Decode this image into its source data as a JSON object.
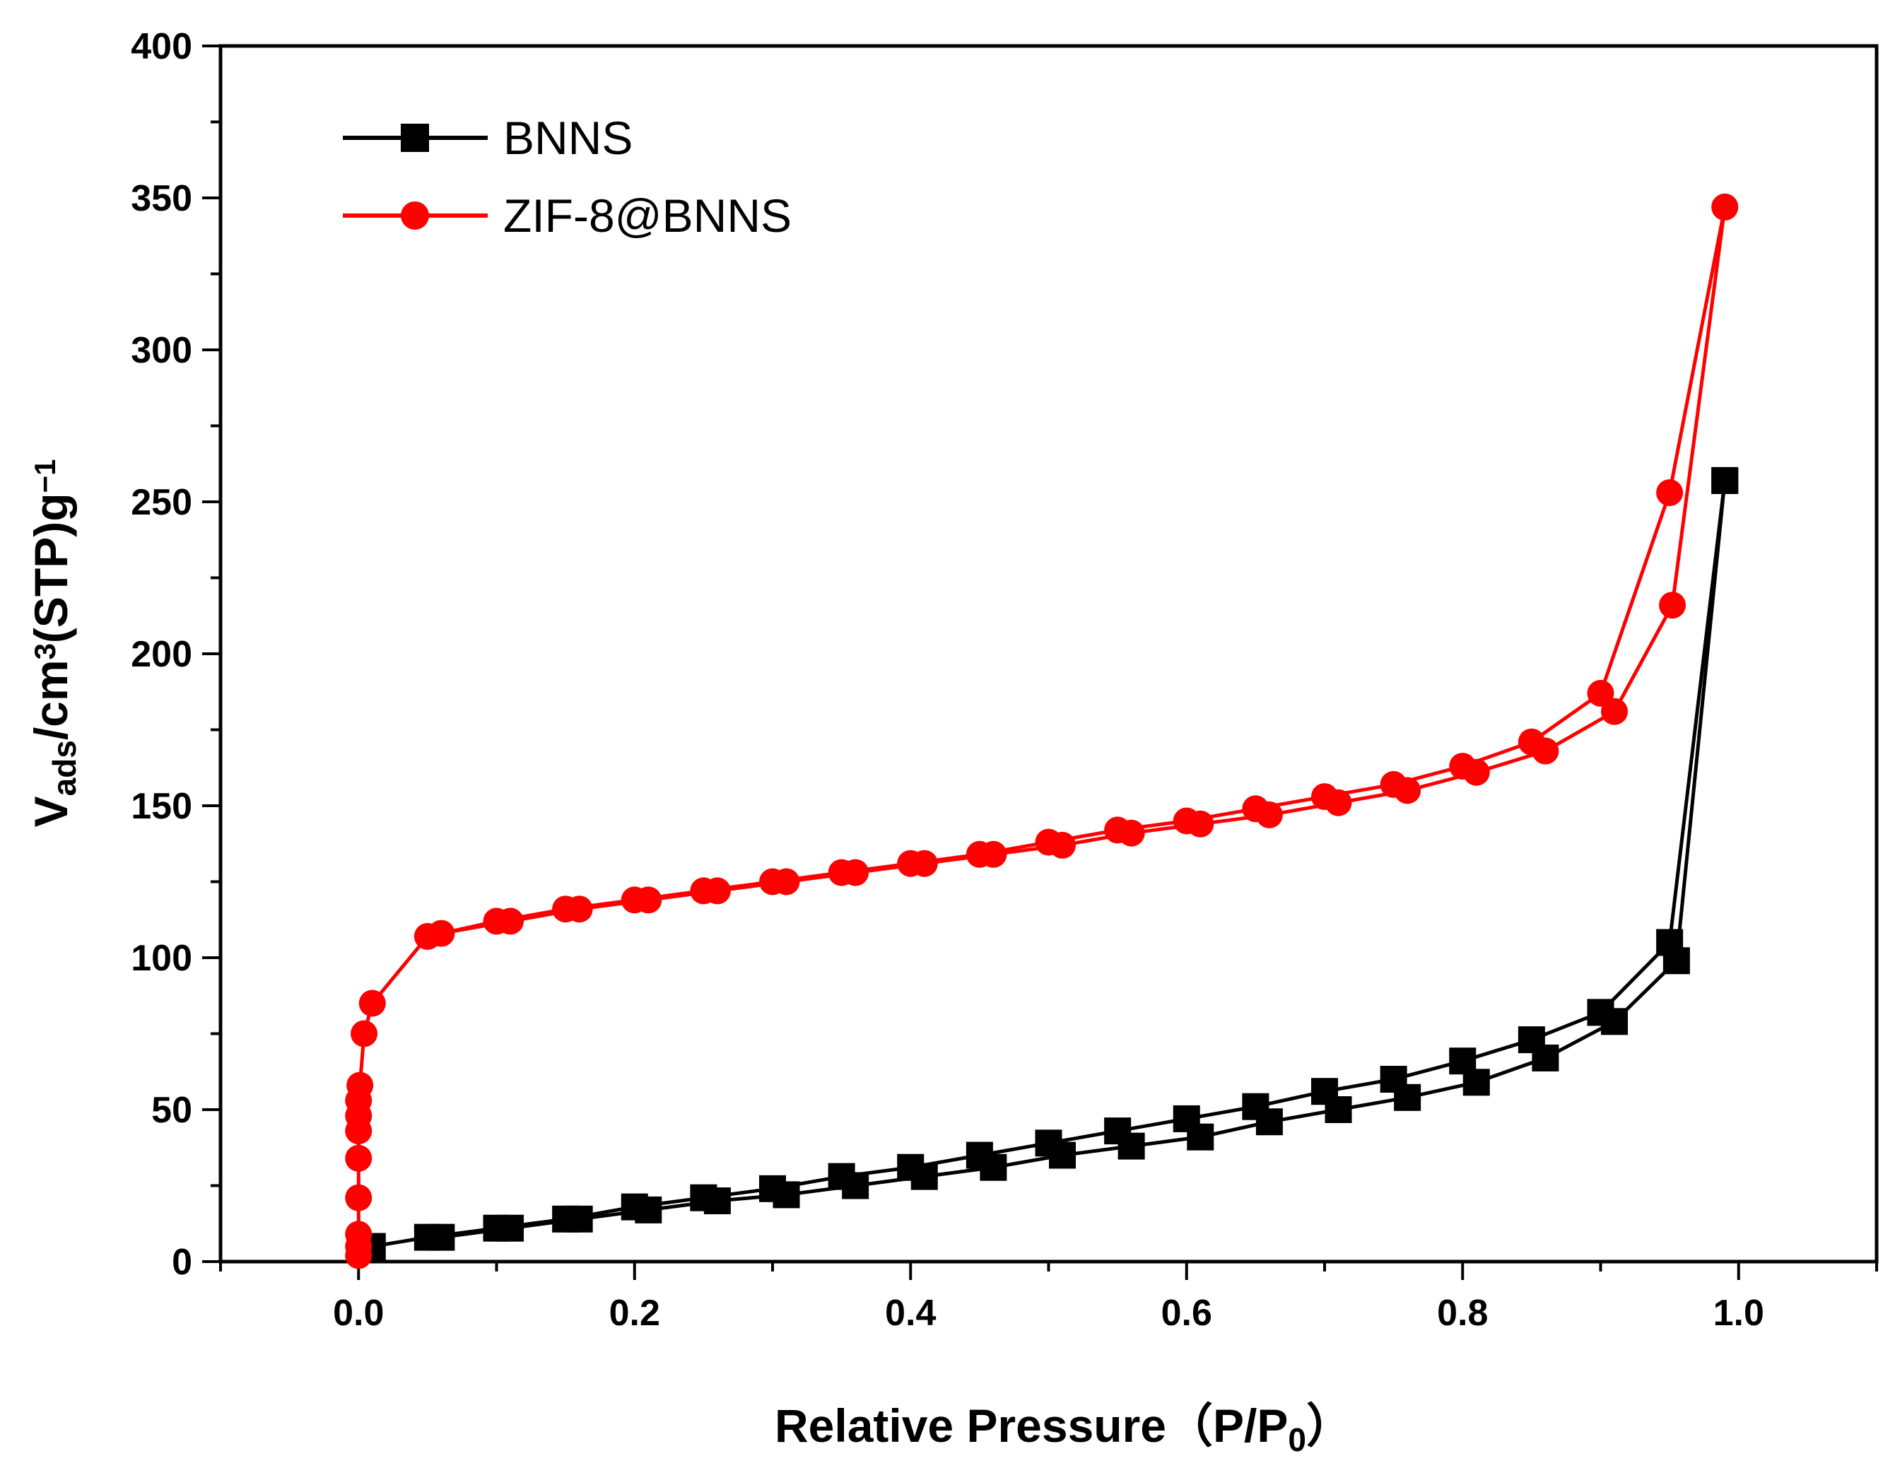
{
  "chart_data": {
    "type": "line",
    "title": "",
    "xlabel": "Relative Pressure（P/P0）",
    "xlabel_parts": {
      "main": "Relative Pressure（P/P",
      "sub": "0",
      "close": "）"
    },
    "ylabel": "Vads/cm3(STP)g−1",
    "ylabel_parts": {
      "v": "V",
      "ads": "ads",
      "cm": "/cm",
      "sup3": "3",
      "stp": "(STP)g",
      "supneg1": "−1"
    },
    "xlim": [
      -0.1,
      1.1
    ],
    "ylim": [
      0,
      400
    ],
    "x_ticks": [
      "0.0",
      "0.2",
      "0.4",
      "0.6",
      "0.8",
      "1.0"
    ],
    "x_tick_values": [
      0,
      0.2,
      0.4,
      0.6,
      0.8,
      1.0
    ],
    "y_ticks": [
      "0",
      "50",
      "100",
      "150",
      "200",
      "250",
      "300",
      "350",
      "400"
    ],
    "y_tick_values": [
      0,
      50,
      100,
      150,
      200,
      250,
      300,
      350,
      400
    ],
    "legend_position": "top-left",
    "series": [
      {
        "name": "BNNS",
        "color": "#000000",
        "marker": "square",
        "adsorption": [
          [
            0.01,
            5
          ],
          [
            0.05,
            8
          ],
          [
            0.1,
            11
          ],
          [
            0.15,
            14
          ],
          [
            0.2,
            18
          ],
          [
            0.25,
            21
          ],
          [
            0.3,
            24
          ],
          [
            0.35,
            28
          ],
          [
            0.4,
            31
          ],
          [
            0.45,
            35
          ],
          [
            0.5,
            39
          ],
          [
            0.55,
            43
          ],
          [
            0.6,
            47
          ],
          [
            0.65,
            51
          ],
          [
            0.7,
            56
          ],
          [
            0.75,
            60
          ],
          [
            0.8,
            66
          ],
          [
            0.85,
            73
          ],
          [
            0.9,
            82
          ],
          [
            0.95,
            105
          ],
          [
            0.99,
            257
          ]
        ],
        "desorption": [
          [
            0.99,
            257
          ],
          [
            0.955,
            99
          ],
          [
            0.91,
            79
          ],
          [
            0.86,
            67
          ],
          [
            0.81,
            59
          ],
          [
            0.76,
            54
          ],
          [
            0.71,
            50
          ],
          [
            0.66,
            46
          ],
          [
            0.61,
            41
          ],
          [
            0.56,
            38
          ],
          [
            0.51,
            35
          ],
          [
            0.46,
            31
          ],
          [
            0.41,
            28
          ],
          [
            0.36,
            25
          ],
          [
            0.31,
            22
          ],
          [
            0.26,
            20
          ],
          [
            0.21,
            17
          ],
          [
            0.16,
            14
          ],
          [
            0.11,
            11
          ],
          [
            0.06,
            8
          ]
        ]
      },
      {
        "name": "ZIF-8@BNNS",
        "color": "#ff0000",
        "marker": "circle",
        "adsorption": [
          [
            0.0,
            2
          ],
          [
            0.0,
            5
          ],
          [
            0.0,
            9
          ],
          [
            0.0,
            21
          ],
          [
            0.0,
            34
          ],
          [
            0.0,
            43
          ],
          [
            0.0,
            48
          ],
          [
            0.0,
            53
          ],
          [
            0.001,
            58
          ],
          [
            0.004,
            75
          ],
          [
            0.01,
            85
          ],
          [
            0.05,
            107
          ],
          [
            0.1,
            112
          ],
          [
            0.15,
            116
          ],
          [
            0.2,
            119
          ],
          [
            0.25,
            122
          ],
          [
            0.3,
            125
          ],
          [
            0.35,
            128
          ],
          [
            0.4,
            131
          ],
          [
            0.45,
            134
          ],
          [
            0.5,
            138
          ],
          [
            0.55,
            142
          ],
          [
            0.6,
            145
          ],
          [
            0.65,
            149
          ],
          [
            0.7,
            153
          ],
          [
            0.75,
            157
          ],
          [
            0.8,
            163
          ],
          [
            0.85,
            171
          ],
          [
            0.9,
            187
          ],
          [
            0.95,
            253
          ],
          [
            0.99,
            347
          ]
        ],
        "desorption": [
          [
            0.99,
            347
          ],
          [
            0.952,
            216
          ],
          [
            0.91,
            181
          ],
          [
            0.86,
            168
          ],
          [
            0.81,
            161
          ],
          [
            0.76,
            155
          ],
          [
            0.71,
            151
          ],
          [
            0.66,
            147
          ],
          [
            0.61,
            144
          ],
          [
            0.56,
            141
          ],
          [
            0.51,
            137
          ],
          [
            0.46,
            134
          ],
          [
            0.41,
            131
          ],
          [
            0.36,
            128
          ],
          [
            0.31,
            125
          ],
          [
            0.26,
            122
          ],
          [
            0.21,
            119
          ],
          [
            0.16,
            116
          ],
          [
            0.11,
            112
          ],
          [
            0.06,
            108
          ]
        ]
      }
    ]
  }
}
